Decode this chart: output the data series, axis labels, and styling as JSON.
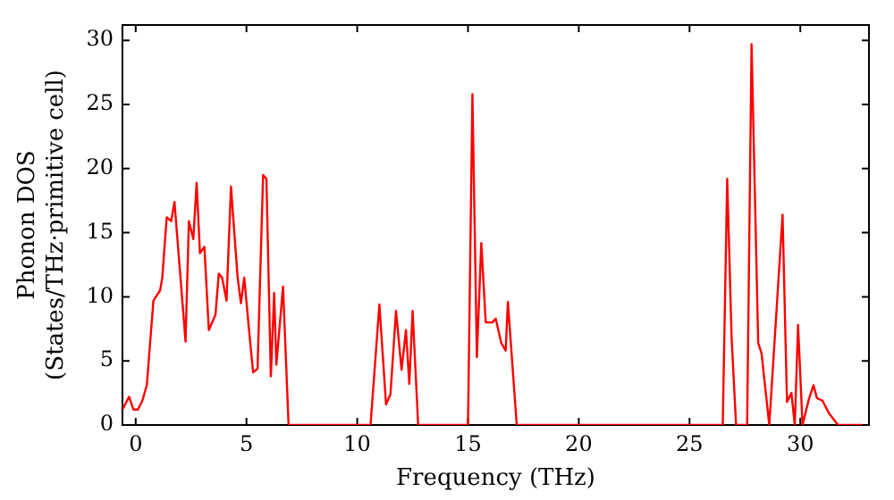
{
  "chart_data": {
    "type": "line",
    "xlabel": "Frequency (THz)",
    "ylabel": "Phonon DOS\n(States/THz·primitive cell)",
    "xlim": [
      -0.6,
      33.1
    ],
    "ylim": [
      0,
      31.2
    ],
    "xticks": [
      0,
      5,
      10,
      15,
      20,
      25,
      30
    ],
    "yticks": [
      0,
      5,
      10,
      15,
      20,
      25,
      30
    ],
    "grid": false,
    "legend": false,
    "marker": "none",
    "line_style": "solid",
    "series": [
      {
        "color": "#ff0000",
        "x": [
          -0.6,
          -0.3,
          -0.1,
          0.1,
          0.3,
          0.5,
          0.8,
          1.1,
          1.2,
          1.4,
          1.6,
          1.75,
          2.25,
          2.4,
          2.6,
          2.75,
          2.9,
          3.1,
          3.3,
          3.6,
          3.75,
          3.9,
          4.1,
          4.3,
          4.6,
          4.75,
          4.9,
          5.1,
          5.3,
          5.5,
          5.75,
          5.9,
          6.1,
          6.25,
          6.35,
          6.65,
          6.9,
          10.6,
          11.0,
          11.3,
          11.5,
          11.75,
          12.0,
          12.2,
          12.35,
          12.5,
          12.75,
          15.0,
          15.2,
          15.4,
          15.6,
          15.8,
          16.1,
          16.25,
          16.5,
          16.7,
          16.8,
          17.2,
          26.5,
          26.7,
          26.9,
          27.1,
          27.6,
          27.8,
          28.1,
          28.25,
          28.6,
          29.2,
          29.4,
          29.6,
          29.75,
          29.9,
          30.1,
          30.4,
          30.6,
          30.75,
          31.0,
          31.3,
          31.7,
          32.8
        ],
        "values": [
          1.2,
          2.2,
          1.2,
          1.2,
          1.9,
          3.1,
          9.7,
          10.5,
          11.5,
          16.2,
          15.9,
          17.4,
          6.5,
          15.9,
          14.5,
          18.9,
          13.4,
          13.9,
          7.4,
          8.6,
          11.8,
          11.5,
          9.7,
          18.6,
          11.5,
          9.5,
          11.5,
          7.7,
          4.1,
          4.4,
          19.5,
          19.2,
          3.8,
          10.3,
          4.7,
          10.8,
          0,
          0,
          9.4,
          1.6,
          2.4,
          8.9,
          4.3,
          7.4,
          3.2,
          8.9,
          0,
          0,
          25.8,
          5.3,
          14.2,
          8.0,
          8.0,
          8.3,
          6.4,
          5.8,
          9.6,
          0,
          0,
          19.2,
          6.8,
          0,
          0,
          29.7,
          6.4,
          5.6,
          0,
          16.4,
          1.8,
          2.5,
          0,
          7.8,
          0,
          2.1,
          3.1,
          2.1,
          1.9,
          0.9,
          0,
          0
        ]
      }
    ]
  }
}
